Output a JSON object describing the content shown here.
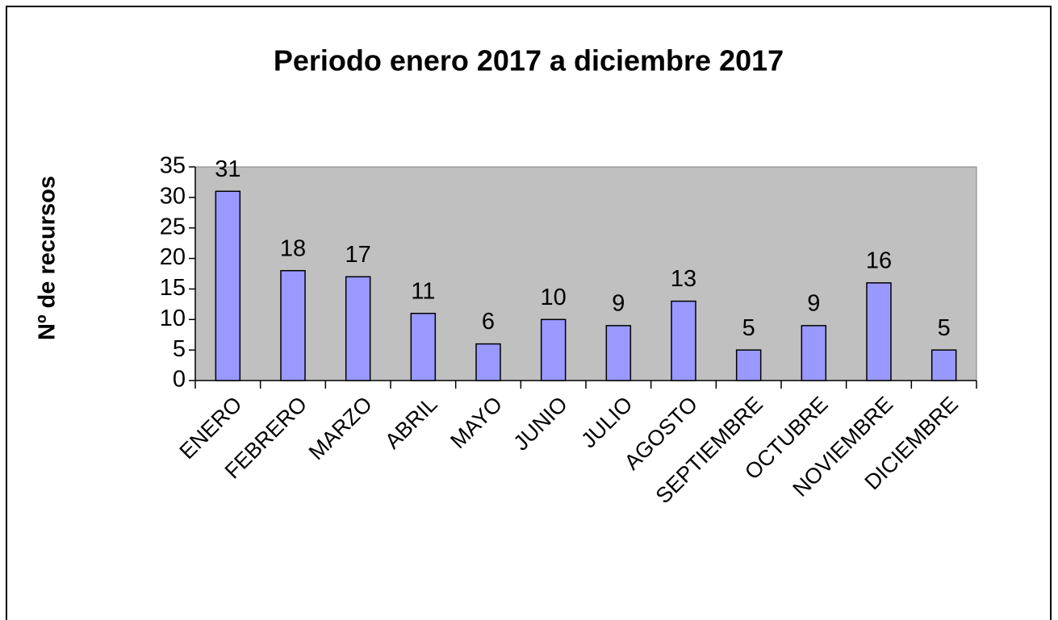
{
  "chart_data": {
    "type": "bar",
    "title": "Periodo enero 2017 a diciembre 2017",
    "y_label": "Nº de recursos",
    "categories": [
      "ENERO",
      "FEBRERO",
      "MARZO",
      "ABRIL",
      "MAYO",
      "JUNIO",
      "JULIO",
      "AGOSTO",
      "SEPTIEMBRE",
      "OCTUBRE",
      "NOVIEMBRE",
      "DICIEMBRE"
    ],
    "values": [
      31,
      18,
      17,
      11,
      6,
      10,
      9,
      13,
      5,
      9,
      16,
      5
    ],
    "color": "#9999ff",
    "plot_background": "#c0c0c0",
    "ylim": [
      0,
      35
    ],
    "yticks": [
      0,
      5,
      10,
      15,
      20,
      25,
      30,
      35
    ],
    "grid": false
  }
}
